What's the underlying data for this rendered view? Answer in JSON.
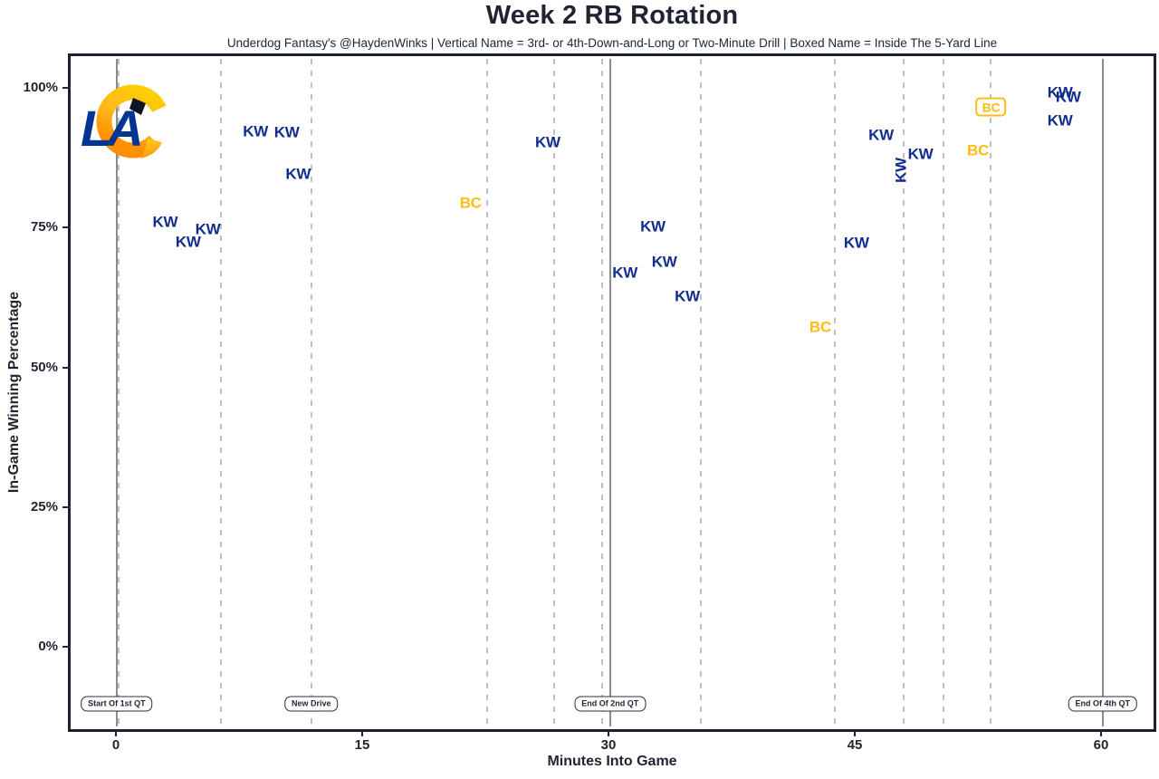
{
  "header": {
    "title": "Week 2 RB Rotation",
    "subtitle": "Underdog Fantasy's @HaydenWinks | Vertical Name = 3rd- or 4th-Down-and-Long or Two-Minute Drill | Boxed Name = Inside The 5-Yard Line"
  },
  "logo": {
    "name": "la-rams-logo",
    "text": "LA"
  },
  "colors": {
    "kw_blue": "#122D8F",
    "bc_gold": "#FFBC11",
    "ink": "#1F2430",
    "quarter_line_gray": "#8C8C8C",
    "drive_line_gray": "#C0C0C0",
    "logo_blue": "#003594",
    "logo_gold_light": "#FFD100",
    "logo_gold_dark": "#FF9100"
  },
  "chart_data": {
    "type": "scatter",
    "title": "Week 2 RB Rotation",
    "xlabel": "Minutes Into Game",
    "ylabel": "In-Game Winning Percentage",
    "xlim": [
      -2.8,
      63.2
    ],
    "ylim": [
      -14.8,
      105.7
    ],
    "grid": "vertical-dashed-drive-lines-only",
    "legend_position": "none",
    "x_ticks": [
      {
        "value": 0,
        "label": "0"
      },
      {
        "value": 15,
        "label": "15"
      },
      {
        "value": 30,
        "label": "30"
      },
      {
        "value": 45,
        "label": "45"
      },
      {
        "value": 60,
        "label": "60"
      }
    ],
    "y_ticks": [
      {
        "value": 0,
        "label": "0%"
      },
      {
        "value": 25,
        "label": "25%"
      },
      {
        "value": 50,
        "label": "50%"
      },
      {
        "value": 75,
        "label": "75%"
      },
      {
        "value": 100,
        "label": "100%"
      }
    ],
    "quarter_lines": [
      {
        "min": 0.05,
        "label": "Start Of 1st QT"
      },
      {
        "min": 30.1,
        "label": "End Of 2nd QT"
      },
      {
        "min": 60.1,
        "label": "End Of 4th QT"
      }
    ],
    "drive_lines_min": [
      0.15,
      6.4,
      11.9,
      22.6,
      26.7,
      29.6,
      35.6,
      43.8,
      48.0,
      50.4,
      53.3
    ],
    "new_drive_label": {
      "min": 11.9,
      "label": "New Drive"
    },
    "points": [
      {
        "player": "KW",
        "min": 3.0,
        "win_pct": 76.0,
        "style": "normal",
        "color": "kw"
      },
      {
        "player": "KW",
        "min": 4.4,
        "win_pct": 72.4,
        "style": "normal",
        "color": "kw"
      },
      {
        "player": "KW",
        "min": 5.6,
        "win_pct": 74.7,
        "style": "normal",
        "color": "kw"
      },
      {
        "player": "KW",
        "min": 8.5,
        "win_pct": 92.2,
        "style": "normal",
        "color": "kw"
      },
      {
        "player": "KW",
        "min": 10.4,
        "win_pct": 92.1,
        "style": "normal",
        "color": "kw"
      },
      {
        "player": "KW",
        "min": 11.1,
        "win_pct": 84.6,
        "style": "normal",
        "color": "kw"
      },
      {
        "player": "BC",
        "min": 21.6,
        "win_pct": 79.4,
        "style": "normal",
        "color": "bc"
      },
      {
        "player": "KW",
        "min": 26.3,
        "win_pct": 90.3,
        "style": "normal",
        "color": "kw"
      },
      {
        "player": "KW",
        "min": 31.0,
        "win_pct": 66.9,
        "style": "normal",
        "color": "kw"
      },
      {
        "player": "KW",
        "min": 32.7,
        "win_pct": 75.2,
        "style": "normal",
        "color": "kw"
      },
      {
        "player": "KW",
        "min": 33.4,
        "win_pct": 68.9,
        "style": "normal",
        "color": "kw"
      },
      {
        "player": "KW",
        "min": 34.8,
        "win_pct": 62.7,
        "style": "normal",
        "color": "kw"
      },
      {
        "player": "BC",
        "min": 42.9,
        "win_pct": 57.2,
        "style": "normal",
        "color": "bc"
      },
      {
        "player": "KW",
        "min": 45.1,
        "win_pct": 72.3,
        "style": "normal",
        "color": "kw"
      },
      {
        "player": "KW",
        "min": 46.6,
        "win_pct": 91.6,
        "style": "normal",
        "color": "kw"
      },
      {
        "player": "KW",
        "min": 47.8,
        "win_pct": 85.3,
        "style": "vertical",
        "color": "kw"
      },
      {
        "player": "KW",
        "min": 49.0,
        "win_pct": 88.2,
        "style": "normal",
        "color": "kw"
      },
      {
        "player": "BC",
        "min": 52.5,
        "win_pct": 88.8,
        "style": "normal",
        "color": "bc"
      },
      {
        "player": "BC",
        "min": 53.3,
        "win_pct": 96.6,
        "style": "boxed",
        "color": "bc"
      },
      {
        "player": "KW",
        "min": 57.5,
        "win_pct": 99.2,
        "style": "normal",
        "color": "kw"
      },
      {
        "player": "KW",
        "min": 58.0,
        "win_pct": 98.4,
        "style": "normal",
        "color": "kw"
      },
      {
        "player": "KW",
        "min": 57.5,
        "win_pct": 94.2,
        "style": "normal",
        "color": "kw"
      }
    ]
  }
}
